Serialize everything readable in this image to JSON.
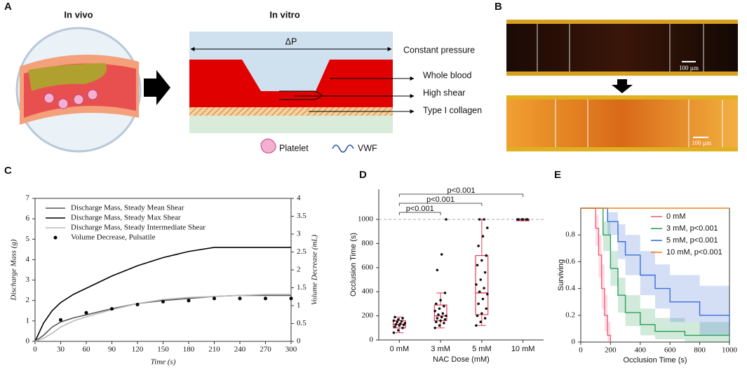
{
  "panels": {
    "labels": [
      "A",
      "B",
      "C",
      "D",
      "E"
    ]
  },
  "diagram_a": {
    "in_vivo": "In vivo",
    "in_vitro": "In vitro",
    "pressure_symbol": "ΔP",
    "labels": [
      "Constant pressure",
      "Whole blood",
      "High shear",
      "Type I collagen"
    ],
    "legend": [
      "Platelet",
      "VWF"
    ]
  },
  "image_b": {
    "scale_labels": [
      "100 µm",
      "100 µm"
    ]
  },
  "chart_data": [
    {
      "type": "line",
      "xlabel": "Time (s)",
      "ylabel": "Discharge Mass (g)",
      "y2label": "Volume Decrease (mL)",
      "x": [
        0,
        10,
        20,
        30,
        45,
        60,
        90,
        120,
        150,
        180,
        210,
        240,
        270,
        300
      ],
      "xlim": [
        0,
        300
      ],
      "xticks": [
        0,
        30,
        60,
        90,
        120,
        150,
        180,
        210,
        240,
        270,
        300
      ],
      "ylim": [
        0,
        7
      ],
      "yticks": [
        0,
        1,
        2,
        3,
        4,
        5,
        6,
        7
      ],
      "y2lim": [
        0,
        4
      ],
      "y2ticks": [
        0,
        0.5,
        1,
        1.5,
        2,
        2.5,
        3,
        3.5,
        4
      ],
      "legend": "upper left",
      "series": [
        {
          "name": "Discharge Mass, Steady Mean Shear",
          "color": "#555555",
          "values": [
            0,
            0.3,
            0.7,
            0.95,
            1.15,
            1.3,
            1.6,
            1.85,
            2.0,
            2.1,
            2.2,
            2.25,
            2.25,
            2.25
          ]
        },
        {
          "name": "Discharge Mass, Steady Max Shear",
          "color": "#000000",
          "values": [
            0,
            0.9,
            1.5,
            1.9,
            2.3,
            2.6,
            3.2,
            3.7,
            4.1,
            4.4,
            4.6,
            4.6,
            4.6,
            4.6
          ]
        },
        {
          "name": "Discharge Mass, Steady Intermediate Shear",
          "color": "#bbbbbb",
          "values": [
            0,
            0.15,
            0.4,
            0.7,
            1.0,
            1.2,
            1.55,
            1.85,
            2.05,
            2.15,
            2.2,
            2.25,
            2.3,
            2.3
          ]
        },
        {
          "name": "Volume Decrease, Pulsatile",
          "color": "#000000",
          "mode": "markers",
          "axis": "y2",
          "x": [
            30,
            60,
            90,
            120,
            150,
            180,
            210,
            240,
            270,
            300
          ],
          "values": [
            0.6,
            0.8,
            0.91,
            1.03,
            1.11,
            1.14,
            1.2,
            1.2,
            1.2,
            1.2
          ]
        }
      ]
    },
    {
      "type": "box",
      "xlabel": "NAC Dose (mM)",
      "ylabel": "Occlusion Time (s)",
      "color": "#e0405a",
      "categories": [
        "0 mM",
        "3 mM",
        "5 mM",
        "10 mM"
      ],
      "ylim": [
        0,
        1250
      ],
      "yticks": [
        0,
        200,
        400,
        600,
        800,
        1000
      ],
      "reference_line": 1000,
      "boxes": [
        {
          "min": 60,
          "q1": 100,
          "median": 130,
          "q3": 160,
          "max": 190
        },
        {
          "min": 100,
          "q1": 160,
          "median": 200,
          "q3": 290,
          "max": 390
        },
        {
          "min": 120,
          "q1": 210,
          "median": 390,
          "q3": 700,
          "max": 1000
        },
        {
          "min": 1000,
          "q1": 1000,
          "median": 1000,
          "q3": 1000,
          "max": 1000
        }
      ],
      "points": [
        [
          60,
          80,
          100,
          110,
          120,
          125,
          130,
          135,
          140,
          150,
          155,
          160,
          170,
          180,
          190
        ],
        [
          100,
          120,
          140,
          150,
          160,
          170,
          180,
          190,
          200,
          210,
          220,
          240,
          260,
          280,
          300,
          330,
          390,
          580,
          710,
          1000
        ],
        [
          120,
          150,
          180,
          200,
          220,
          260,
          300,
          340,
          380,
          400,
          430,
          460,
          500,
          560,
          620,
          660,
          700,
          780,
          860,
          930,
          1000,
          1000
        ],
        [
          1000,
          1000,
          1000,
          1000,
          1000,
          1000
        ]
      ],
      "comparisons": [
        {
          "pair": [
            0,
            1
          ],
          "label": "p<0.001"
        },
        {
          "pair": [
            0,
            2
          ],
          "label": "p<0.001"
        },
        {
          "pair": [
            0,
            3
          ],
          "label": "p<0.001"
        }
      ]
    },
    {
      "type": "step",
      "xlabel": "Occlusion Time (s)",
      "ylabel": "Surviving",
      "xlim": [
        0,
        1000
      ],
      "xticks": [
        0,
        200,
        400,
        600,
        800,
        1000
      ],
      "ylim": [
        0,
        1
      ],
      "yticks": [
        0,
        0.2,
        0.4,
        0.6,
        0.8
      ],
      "legend": "upper right",
      "series": [
        {
          "name": "0 mM",
          "color": "#f06080",
          "x": [
            0,
            70,
            100,
            120,
            140,
            160,
            180,
            200
          ],
          "values": [
            1,
            1,
            0.85,
            0.65,
            0.4,
            0.2,
            0.05,
            0
          ],
          "upper": [
            1,
            1,
            0.95,
            0.8,
            0.58,
            0.35,
            0.15,
            0.05
          ],
          "lower": [
            1,
            1,
            0.72,
            0.48,
            0.25,
            0.08,
            0,
            0
          ]
        },
        {
          "name": "3 mM,",
          "note": "p<0.001",
          "color": "#2ca05a",
          "x": [
            0,
            100,
            150,
            200,
            250,
            300,
            400,
            500,
            700,
            1000
          ],
          "values": [
            1,
            1,
            0.8,
            0.55,
            0.35,
            0.22,
            0.13,
            0.08,
            0.05,
            0.03
          ],
          "upper": [
            1,
            1,
            0.9,
            0.68,
            0.48,
            0.35,
            0.25,
            0.18,
            0.15,
            0.15
          ],
          "lower": [
            1,
            1,
            0.68,
            0.42,
            0.22,
            0.12,
            0.05,
            0.02,
            0,
            0
          ]
        },
        {
          "name": "5 mM,",
          "note": "p<0.001",
          "color": "#3a6fd8",
          "x": [
            0,
            130,
            180,
            250,
            300,
            400,
            500,
            600,
            800,
            1000
          ],
          "values": [
            1,
            1,
            0.9,
            0.75,
            0.65,
            0.5,
            0.4,
            0.3,
            0.2,
            0.15
          ],
          "upper": [
            1,
            1,
            0.97,
            0.88,
            0.8,
            0.68,
            0.58,
            0.5,
            0.42,
            0.4
          ],
          "lower": [
            1,
            1,
            0.8,
            0.62,
            0.5,
            0.35,
            0.25,
            0.15,
            0.05,
            0
          ]
        },
        {
          "name": "10 mM,",
          "note": "p<0.001",
          "color": "#f08020",
          "x": [
            0,
            1000
          ],
          "values": [
            1,
            1
          ]
        }
      ]
    }
  ]
}
